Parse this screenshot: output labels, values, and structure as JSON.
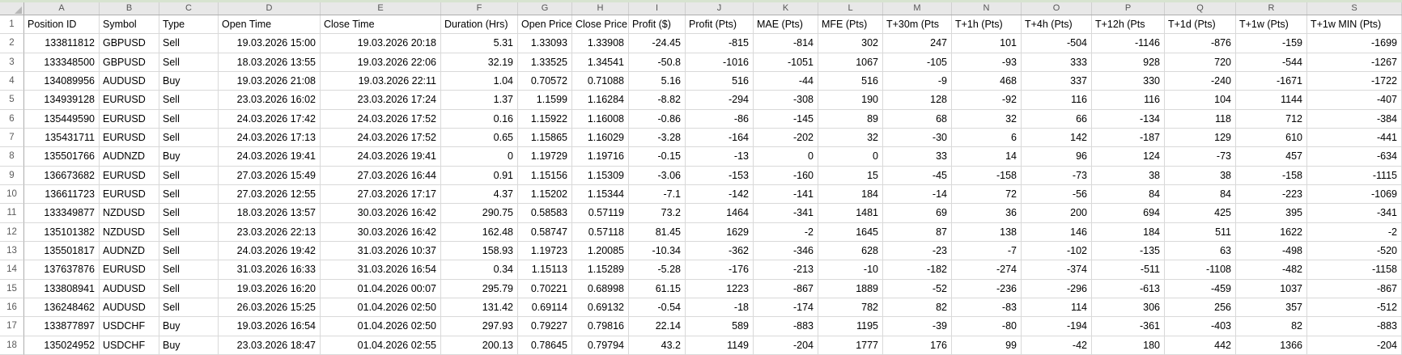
{
  "sheet": {
    "column_letters": [
      "A",
      "B",
      "C",
      "D",
      "E",
      "F",
      "G",
      "H",
      "I",
      "J",
      "K",
      "L",
      "M",
      "N",
      "O",
      "P",
      "Q",
      "R",
      "S"
    ],
    "header_row": {
      "number": "1",
      "cells": [
        "Position ID",
        "Symbol",
        "Type",
        "Open Time",
        "Close Time",
        "Duration (Hrs)",
        "Open Price",
        "Close Price",
        "Profit ($)",
        "Profit (Pts)",
        "MAE (Pts)",
        "MFE (Pts)",
        "T+30m (Pts",
        "T+1h (Pts)",
        "T+4h (Pts)",
        "T+12h (Pts",
        "T+1d (Pts)",
        "T+1w (Pts)",
        "T+1w MIN (Pts)"
      ]
    },
    "data_rows": [
      {
        "number": "2",
        "cells": [
          "133811812",
          "GBPUSD",
          "Sell",
          "19.03.2026 15:00",
          "19.03.2026 20:18",
          "5.31",
          "1.33093",
          "1.33908",
          "-24.45",
          "-815",
          "-814",
          "302",
          "247",
          "101",
          "-504",
          "-1146",
          "-876",
          "-159",
          "-1699"
        ]
      },
      {
        "number": "3",
        "cells": [
          "133348500",
          "GBPUSD",
          "Sell",
          "18.03.2026 13:55",
          "19.03.2026 22:06",
          "32.19",
          "1.33525",
          "1.34541",
          "-50.8",
          "-1016",
          "-1051",
          "1067",
          "-105",
          "-93",
          "333",
          "928",
          "720",
          "-544",
          "-1267"
        ]
      },
      {
        "number": "4",
        "cells": [
          "134089956",
          "AUDUSD",
          "Buy",
          "19.03.2026 21:08",
          "19.03.2026 22:11",
          "1.04",
          "0.70572",
          "0.71088",
          "5.16",
          "516",
          "-44",
          "516",
          "-9",
          "468",
          "337",
          "330",
          "-240",
          "-1671",
          "-1722"
        ]
      },
      {
        "number": "5",
        "cells": [
          "134939128",
          "EURUSD",
          "Sell",
          "23.03.2026 16:02",
          "23.03.2026 17:24",
          "1.37",
          "1.1599",
          "1.16284",
          "-8.82",
          "-294",
          "-308",
          "190",
          "128",
          "-92",
          "116",
          "116",
          "104",
          "1144",
          "-407"
        ]
      },
      {
        "number": "6",
        "cells": [
          "135449590",
          "EURUSD",
          "Sell",
          "24.03.2026 17:42",
          "24.03.2026 17:52",
          "0.16",
          "1.15922",
          "1.16008",
          "-0.86",
          "-86",
          "-145",
          "89",
          "68",
          "32",
          "66",
          "-134",
          "118",
          "712",
          "-384"
        ]
      },
      {
        "number": "7",
        "cells": [
          "135431711",
          "EURUSD",
          "Sell",
          "24.03.2026 17:13",
          "24.03.2026 17:52",
          "0.65",
          "1.15865",
          "1.16029",
          "-3.28",
          "-164",
          "-202",
          "32",
          "-30",
          "6",
          "142",
          "-187",
          "129",
          "610",
          "-441"
        ]
      },
      {
        "number": "8",
        "cells": [
          "135501766",
          "AUDNZD",
          "Buy",
          "24.03.2026 19:41",
          "24.03.2026 19:41",
          "0",
          "1.19729",
          "1.19716",
          "-0.15",
          "-13",
          "0",
          "0",
          "33",
          "14",
          "96",
          "124",
          "-73",
          "457",
          "-634"
        ]
      },
      {
        "number": "9",
        "cells": [
          "136673682",
          "EURUSD",
          "Sell",
          "27.03.2026 15:49",
          "27.03.2026 16:44",
          "0.91",
          "1.15156",
          "1.15309",
          "-3.06",
          "-153",
          "-160",
          "15",
          "-45",
          "-158",
          "-73",
          "38",
          "38",
          "-158",
          "-1115"
        ]
      },
      {
        "number": "10",
        "cells": [
          "136611723",
          "EURUSD",
          "Sell",
          "27.03.2026 12:55",
          "27.03.2026 17:17",
          "4.37",
          "1.15202",
          "1.15344",
          "-7.1",
          "-142",
          "-141",
          "184",
          "-14",
          "72",
          "-56",
          "84",
          "84",
          "-223",
          "-1069"
        ]
      },
      {
        "number": "11",
        "cells": [
          "133349877",
          "NZDUSD",
          "Sell",
          "18.03.2026 13:57",
          "30.03.2026 16:42",
          "290.75",
          "0.58583",
          "0.57119",
          "73.2",
          "1464",
          "-341",
          "1481",
          "69",
          "36",
          "200",
          "694",
          "425",
          "395",
          "-341"
        ]
      },
      {
        "number": "12",
        "cells": [
          "135101382",
          "NZDUSD",
          "Sell",
          "23.03.2026 22:13",
          "30.03.2026 16:42",
          "162.48",
          "0.58747",
          "0.57118",
          "81.45",
          "1629",
          "-2",
          "1645",
          "87",
          "138",
          "146",
          "184",
          "511",
          "1622",
          "-2"
        ]
      },
      {
        "number": "13",
        "cells": [
          "135501817",
          "AUDNZD",
          "Sell",
          "24.03.2026 19:42",
          "31.03.2026 10:37",
          "158.93",
          "1.19723",
          "1.20085",
          "-10.34",
          "-362",
          "-346",
          "628",
          "-23",
          "-7",
          "-102",
          "-135",
          "63",
          "-498",
          "-520"
        ]
      },
      {
        "number": "14",
        "cells": [
          "137637876",
          "EURUSD",
          "Sell",
          "31.03.2026 16:33",
          "31.03.2026 16:54",
          "0.34",
          "1.15113",
          "1.15289",
          "-5.28",
          "-176",
          "-213",
          "-10",
          "-182",
          "-274",
          "-374",
          "-511",
          "-1108",
          "-482",
          "-1158"
        ]
      },
      {
        "number": "15",
        "cells": [
          "133808941",
          "AUDUSD",
          "Sell",
          "19.03.2026 16:20",
          "01.04.2026 00:07",
          "295.79",
          "0.70221",
          "0.68998",
          "61.15",
          "1223",
          "-867",
          "1889",
          "-52",
          "-236",
          "-296",
          "-613",
          "-459",
          "1037",
          "-867"
        ]
      },
      {
        "number": "16",
        "cells": [
          "136248462",
          "AUDUSD",
          "Sell",
          "26.03.2026 15:25",
          "01.04.2026 02:50",
          "131.42",
          "0.69114",
          "0.69132",
          "-0.54",
          "-18",
          "-174",
          "782",
          "82",
          "-83",
          "114",
          "306",
          "256",
          "357",
          "-512"
        ]
      },
      {
        "number": "17",
        "cells": [
          "133877897",
          "USDCHF",
          "Buy",
          "19.03.2026 16:54",
          "01.04.2026 02:50",
          "297.93",
          "0.79227",
          "0.79816",
          "22.14",
          "589",
          "-883",
          "1195",
          "-39",
          "-80",
          "-194",
          "-361",
          "-403",
          "82",
          "-883"
        ]
      },
      {
        "number": "18",
        "cells": [
          "135024952",
          "USDCHF",
          "Buy",
          "23.03.2026 18:47",
          "01.04.2026 02:55",
          "200.13",
          "0.78645",
          "0.79794",
          "43.2",
          "1149",
          "-204",
          "1777",
          "176",
          "99",
          "-42",
          "180",
          "442",
          "1366",
          "-204"
        ]
      }
    ],
    "colors": {
      "top_band": "#d7e3d0",
      "header_strip_bg": "#e8e8e8",
      "gridline": "#d9d9d9"
    }
  }
}
